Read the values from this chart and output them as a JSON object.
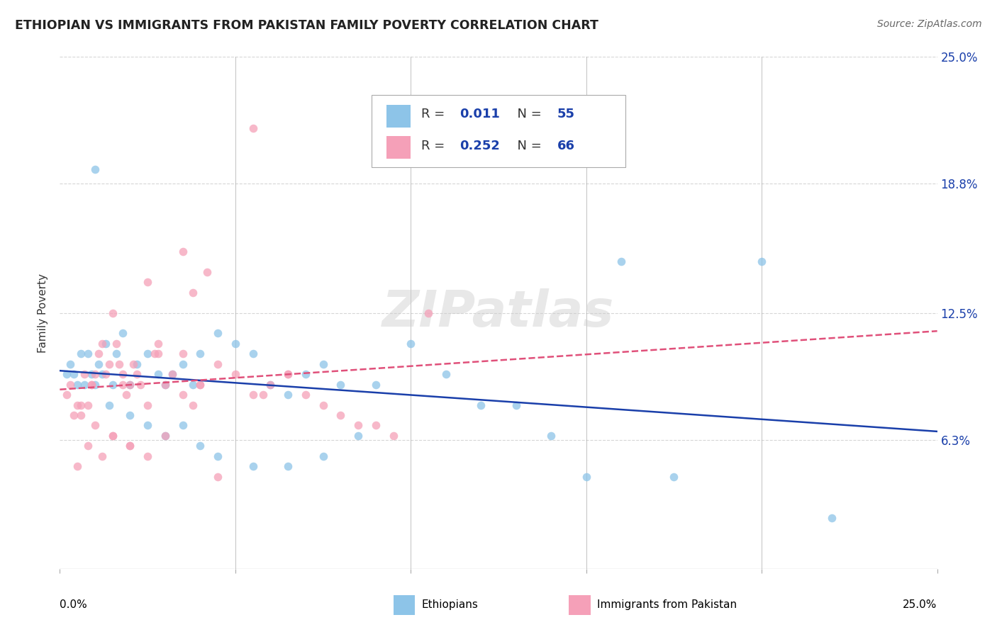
{
  "title": "ETHIOPIAN VS IMMIGRANTS FROM PAKISTAN FAMILY POVERTY CORRELATION CHART",
  "source": "Source: ZipAtlas.com",
  "ylabel": "Family Poverty",
  "color_ethiopian": "#8DC4E8",
  "color_pakistan": "#F5A0B8",
  "color_line_ethiopian": "#1A3FAA",
  "color_line_pakistan": "#E0507A",
  "background_color": "#FFFFFF",
  "grid_color": "#CCCCCC",
  "xlim": [
    0.0,
    25.0
  ],
  "ylim": [
    0.0,
    25.0
  ],
  "ytick_vals": [
    6.3,
    12.5,
    18.8,
    25.0
  ],
  "ytick_labels": [
    "6.3%",
    "12.5%",
    "18.8%",
    "25.0%"
  ],
  "legend_text1": "R =  0.011   N = 55",
  "legend_text2": "R =  0.252   N = 66",
  "watermark": "ZIPatlas",
  "eth_x": [
    0.2,
    0.3,
    0.4,
    0.5,
    0.6,
    0.7,
    0.8,
    0.9,
    1.0,
    1.1,
    1.2,
    1.3,
    1.5,
    1.6,
    1.8,
    2.0,
    2.2,
    2.5,
    2.8,
    3.0,
    3.2,
    3.5,
    3.8,
    4.0,
    4.5,
    5.0,
    5.5,
    6.0,
    6.5,
    7.0,
    7.5,
    8.0,
    9.0,
    10.0,
    11.0,
    12.0,
    13.0,
    14.0,
    15.0,
    16.0,
    17.5,
    20.0,
    1.0,
    1.4,
    2.0,
    2.5,
    3.0,
    3.5,
    4.0,
    4.5,
    5.5,
    6.5,
    7.5,
    8.5,
    22.0
  ],
  "eth_y": [
    9.5,
    10.0,
    9.5,
    9.0,
    10.5,
    9.0,
    10.5,
    9.5,
    9.0,
    10.0,
    9.5,
    11.0,
    9.0,
    10.5,
    11.5,
    9.0,
    10.0,
    10.5,
    9.5,
    9.0,
    9.5,
    10.0,
    9.0,
    10.5,
    11.5,
    11.0,
    10.5,
    9.0,
    8.5,
    9.5,
    10.0,
    9.0,
    9.0,
    11.0,
    9.5,
    8.0,
    8.0,
    6.5,
    4.5,
    15.0,
    4.5,
    15.0,
    19.5,
    8.0,
    7.5,
    7.0,
    6.5,
    7.0,
    6.0,
    5.5,
    5.0,
    5.0,
    5.5,
    6.5,
    2.5
  ],
  "pak_x": [
    0.2,
    0.3,
    0.4,
    0.5,
    0.6,
    0.7,
    0.8,
    0.9,
    1.0,
    1.1,
    1.2,
    1.3,
    1.4,
    1.5,
    1.6,
    1.7,
    1.8,
    1.9,
    2.0,
    2.1,
    2.2,
    2.3,
    2.5,
    2.7,
    2.8,
    3.0,
    3.2,
    3.5,
    3.8,
    4.0,
    4.5,
    5.0,
    5.5,
    6.0,
    6.5,
    7.0,
    7.5,
    8.0,
    8.5,
    9.0,
    9.5,
    3.5,
    4.2,
    3.8,
    2.5,
    5.5,
    6.5,
    0.8,
    1.2,
    2.5,
    3.0,
    0.6,
    0.9,
    1.5,
    4.5,
    5.8,
    2.8,
    1.8,
    0.5,
    10.5,
    2.0,
    3.5,
    1.0,
    1.5,
    2.0,
    4.0
  ],
  "pak_y": [
    8.5,
    9.0,
    7.5,
    8.0,
    7.5,
    9.5,
    8.0,
    9.0,
    9.5,
    10.5,
    11.0,
    9.5,
    10.0,
    12.5,
    11.0,
    10.0,
    9.5,
    8.5,
    9.0,
    10.0,
    9.5,
    9.0,
    8.0,
    10.5,
    10.5,
    9.0,
    9.5,
    8.5,
    8.0,
    9.0,
    10.0,
    9.5,
    8.5,
    9.0,
    9.5,
    8.5,
    8.0,
    7.5,
    7.0,
    7.0,
    6.5,
    15.5,
    14.5,
    13.5,
    14.0,
    21.5,
    9.5,
    6.0,
    5.5,
    5.5,
    6.5,
    8.0,
    9.0,
    6.5,
    4.5,
    8.5,
    11.0,
    9.0,
    5.0,
    12.5,
    6.0,
    10.5,
    7.0,
    6.5,
    6.0,
    9.0
  ]
}
